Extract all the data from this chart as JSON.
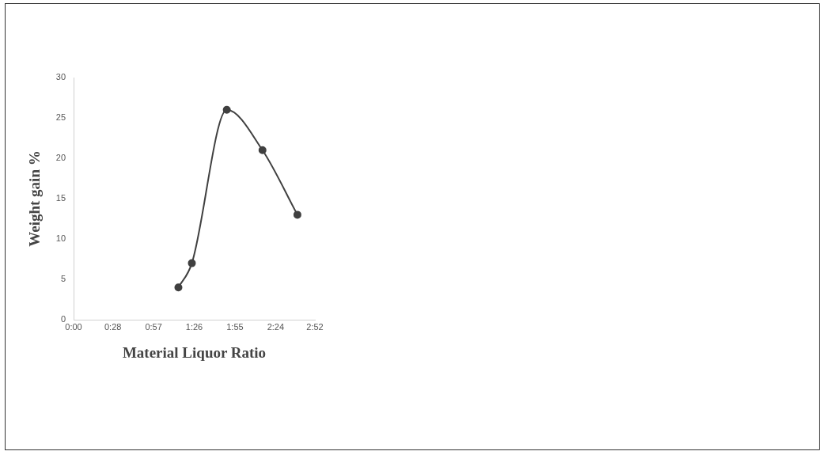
{
  "chart_data": {
    "type": "line",
    "xlabel": "Material Liquor Ratio",
    "ylabel": "Weight gain %",
    "x": [
      1.245,
      1.405,
      1.82,
      2.244,
      2.659
    ],
    "series": [
      {
        "color": "#404040",
        "values": [
          4,
          7,
          26,
          21,
          13
        ]
      }
    ],
    "xlim": [
      0,
      2.8667
    ],
    "xticks": [
      {
        "value": 0,
        "label": "0:00"
      },
      {
        "value": 0.4667,
        "label": "0:28"
      },
      {
        "value": 0.95,
        "label": "0:57"
      },
      {
        "value": 1.4333,
        "label": "1:26"
      },
      {
        "value": 1.9167,
        "label": "1:55"
      },
      {
        "value": 2.4,
        "label": "2:24"
      },
      {
        "value": 2.8667,
        "label": "2:52"
      }
    ],
    "ylim": [
      0,
      30
    ],
    "yticks": [
      0,
      5,
      10,
      15,
      20,
      25,
      30
    ],
    "grid": false,
    "legend": false,
    "marker": "circle",
    "line_style": "solid"
  }
}
